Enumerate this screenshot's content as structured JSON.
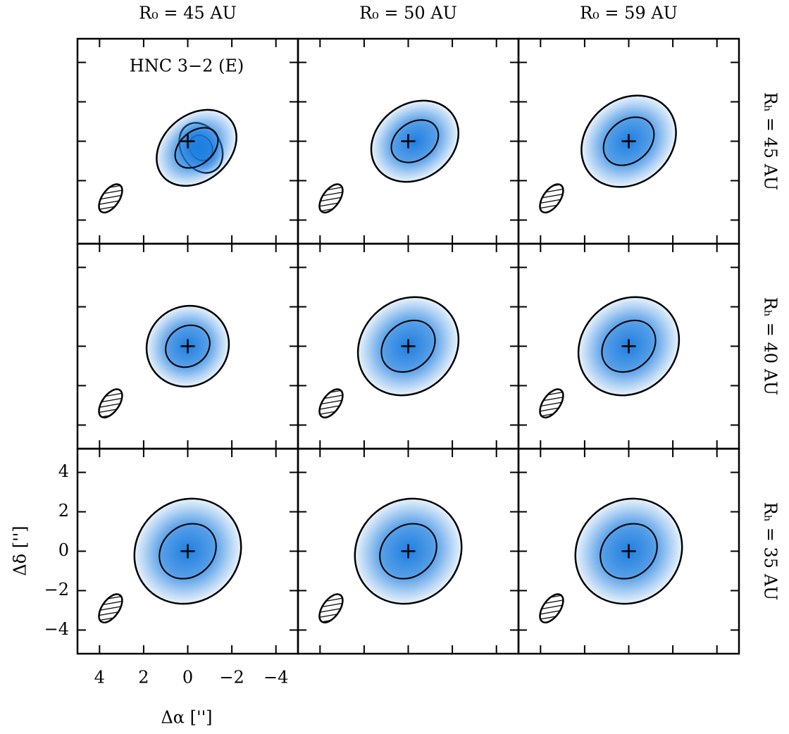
{
  "chart_data": {
    "type": "contour-grid",
    "columns": [
      "R₀ = 45 AU",
      "R₀ = 50 AU",
      "R₀ = 59 AU"
    ],
    "rows": [
      "Rₕ = 45 AU",
      "Rₕ = 40 AU",
      "Rₕ = 35 AU"
    ],
    "annotation": "HNC 3−2 (E)",
    "x_label": "Δα ['']",
    "y_label": "Δδ ['']",
    "xlim": [
      5,
      -5
    ],
    "ylim": [
      -5.2,
      5.2
    ],
    "xticks": [
      4,
      2,
      0,
      {
        "value": -2,
        "label": "−2"
      },
      {
        "value": -4,
        "label": "−4"
      }
    ],
    "yticks": [
      {
        "value": -4,
        "label": "−4"
      },
      {
        "value": -2,
        "label": "−2"
      },
      0,
      2,
      4
    ],
    "color": "#1f7fe0"
  }
}
